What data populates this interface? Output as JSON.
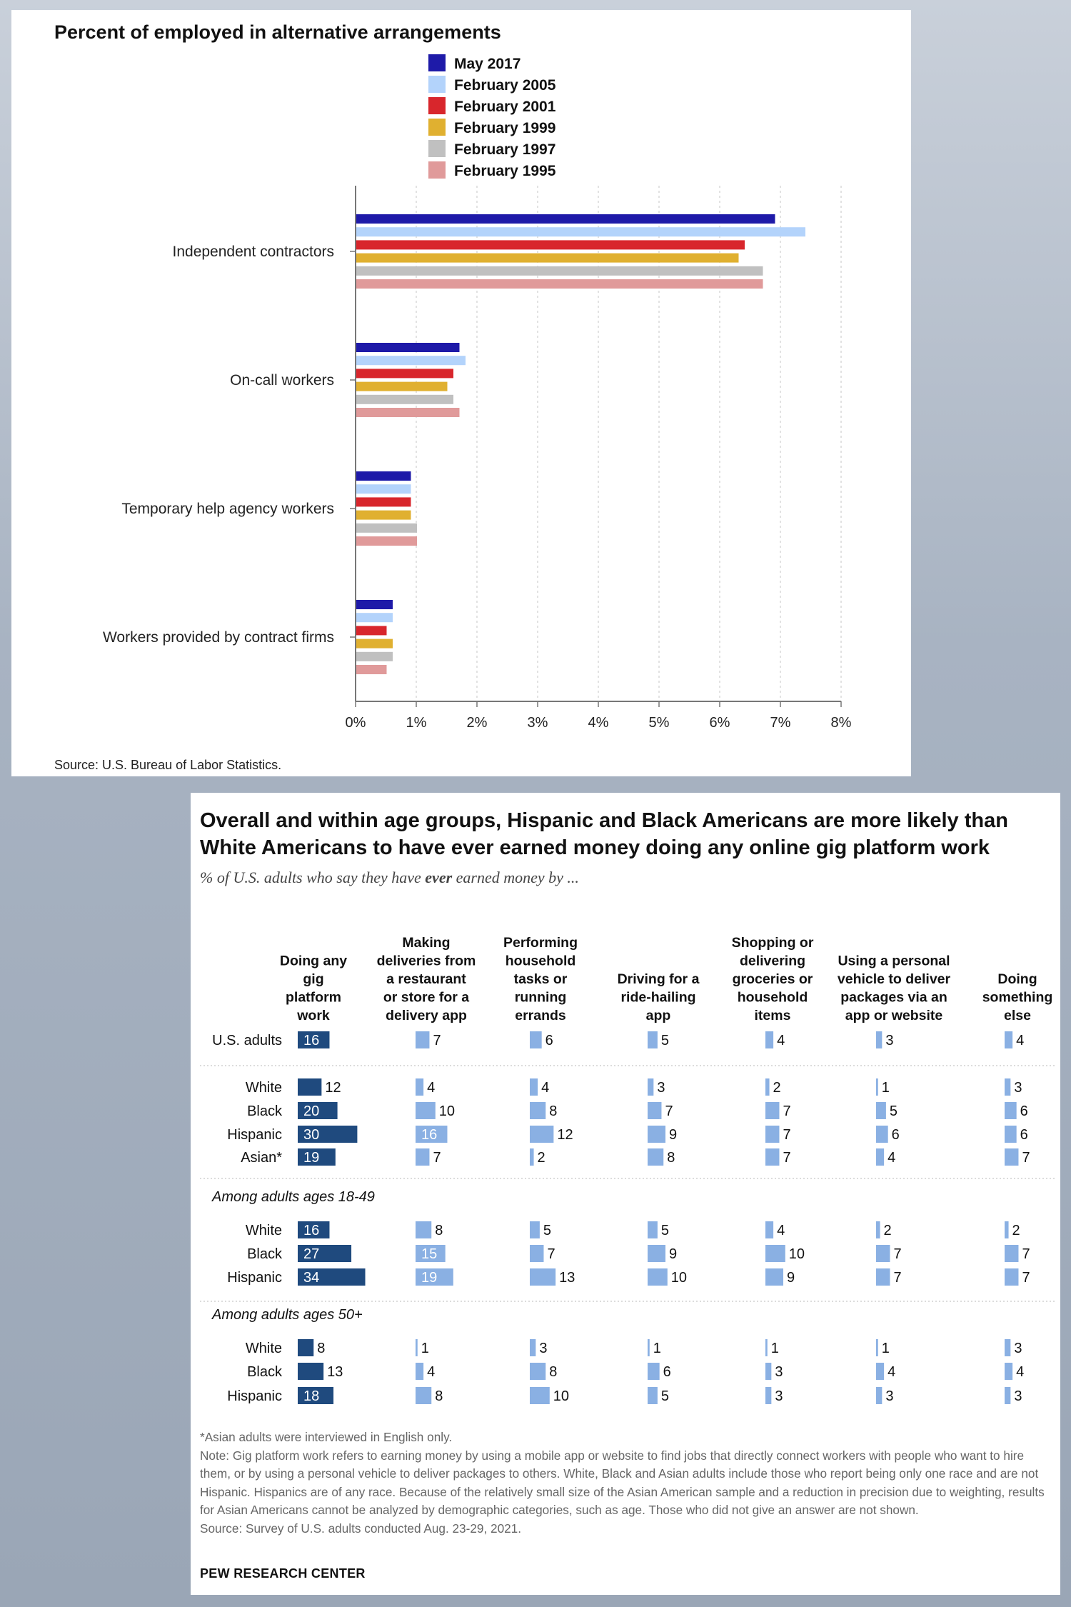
{
  "bls_chart": {
    "title": "Percent of employed in alternative arrangements",
    "source": "Source: U.S. Bureau of Labor Statistics.",
    "colors": [
      "#1e1aa8",
      "#b3d3fb",
      "#d8262c",
      "#e0b030",
      "#c0c0c0",
      "#e09a9a"
    ]
  },
  "pew_chart": {
    "title": "Overall and within age groups, Hispanic and Black Americans are more likely than White Americans to have ever earned money doing any online gig platform work",
    "subtitle_before": "% of U.S. adults who say they have ",
    "subtitle_emph": "ever",
    "subtitle_after": " earned money by ...",
    "footnote": "*Asian adults were interviewed in English only.",
    "note": "Note: Gig platform work refers to earning money by using a mobile app or website to find jobs that directly connect workers with people who want to hire them, or by using a personal vehicle to deliver packages to others. White, Black and Asian adults include those who report being only one race and are not Hispanic. Hispanics are of any race. Because of the relatively small size of the Asian American sample and a reduction in precision due to weighting, results for Asian Americans cannot be analyzed by demographic categories, such as age. Those who did not give an answer are not shown.",
    "source": "Source: Survey of U.S. adults conducted Aug. 23-29, 2021.",
    "brand": "PEW RESEARCH CENTER",
    "colors": {
      "any_gig": "#1f4a7e",
      "other": "#8ab0e3",
      "text_light": "#ffffff"
    }
  },
  "chart_data": [
    {
      "type": "bar",
      "orientation": "horizontal",
      "title": "Percent of employed in alternative arrangements",
      "categories": [
        "Independent contractors",
        "On-call workers",
        "Temporary help agency workers",
        "Workers provided by contract firms"
      ],
      "series": [
        {
          "name": "May 2017",
          "values": [
            6.9,
            1.7,
            0.9,
            0.6
          ]
        },
        {
          "name": "February 2005",
          "values": [
            7.4,
            1.8,
            0.9,
            0.6
          ]
        },
        {
          "name": "February 2001",
          "values": [
            6.4,
            1.6,
            0.9,
            0.5
          ]
        },
        {
          "name": "February 1999",
          "values": [
            6.3,
            1.5,
            0.9,
            0.6
          ]
        },
        {
          "name": "February 1997",
          "values": [
            6.7,
            1.6,
            1.0,
            0.6
          ]
        },
        {
          "name": "February 1995",
          "values": [
            6.7,
            1.7,
            1.0,
            0.5
          ]
        }
      ],
      "xlim": [
        0,
        8
      ],
      "xticks": [
        "0%",
        "1%",
        "2%",
        "3%",
        "4%",
        "5%",
        "6%",
        "7%",
        "8%"
      ],
      "grid": true,
      "legend": "top"
    },
    {
      "type": "table",
      "columns": [
        "Doing any gig platform work",
        "Making deliveries from a restaurant or store for a delivery app",
        "Performing household tasks or running errands",
        "Driving for a ride-hailing app",
        "Shopping or delivering groceries or household items",
        "Using a personal vehicle to deliver packages via an app or website",
        "Doing something else"
      ],
      "groups": [
        {
          "heading": "",
          "rows": [
            {
              "label": "U.S. adults",
              "values": [
                16,
                7,
                6,
                5,
                4,
                3,
                4
              ]
            }
          ]
        },
        {
          "heading": "",
          "rows": [
            {
              "label": "White",
              "values": [
                12,
                4,
                4,
                3,
                2,
                1,
                3
              ]
            },
            {
              "label": "Black",
              "values": [
                20,
                10,
                8,
                7,
                7,
                5,
                6
              ]
            },
            {
              "label": "Hispanic",
              "values": [
                30,
                16,
                12,
                9,
                7,
                6,
                6
              ]
            },
            {
              "label": "Asian*",
              "values": [
                19,
                7,
                2,
                8,
                7,
                4,
                7
              ]
            }
          ]
        },
        {
          "heading": "Among adults ages 18-49",
          "rows": [
            {
              "label": "White",
              "values": [
                16,
                8,
                5,
                5,
                4,
                2,
                2
              ]
            },
            {
              "label": "Black",
              "values": [
                27,
                15,
                7,
                9,
                10,
                7,
                7
              ]
            },
            {
              "label": "Hispanic",
              "values": [
                34,
                19,
                13,
                10,
                9,
                7,
                7
              ]
            }
          ]
        },
        {
          "heading": "Among adults ages 50+",
          "rows": [
            {
              "label": "White",
              "values": [
                8,
                1,
                3,
                1,
                1,
                1,
                3
              ]
            },
            {
              "label": "Black",
              "values": [
                13,
                4,
                8,
                6,
                3,
                4,
                4
              ]
            },
            {
              "label": "Hispanic",
              "values": [
                18,
                8,
                10,
                5,
                3,
                3,
                3
              ]
            }
          ]
        }
      ]
    }
  ]
}
